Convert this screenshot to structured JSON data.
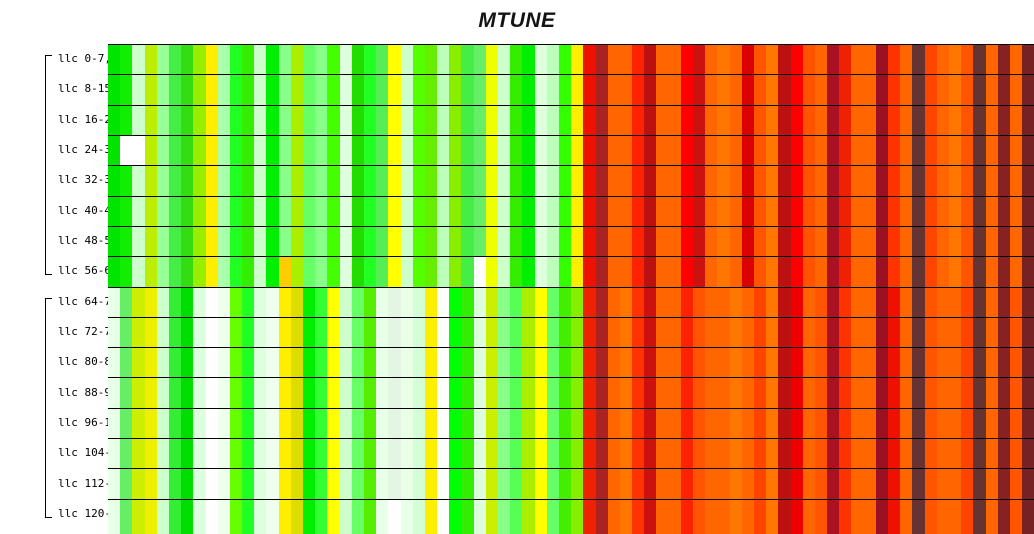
{
  "title": "MTUNE",
  "chart_data": {
    "type": "heatmap",
    "title": "MTUNE",
    "rows": 16,
    "cols": 76,
    "green_cols": 39,
    "legend": "none",
    "grid": "horizontal black separator lines between rows; vertical color stripes per column",
    "value_semantics": "left ~half of columns low/green-yellow values, right ~half high/orange-red values",
    "row_groups": [
      {
        "bracket": true,
        "labels": [
          "llc 0-7,",
          "llc 8-15",
          "llc 16-2",
          "llc 24-3",
          "llc 32-3",
          "llc 40-4",
          "llc 48-5",
          "llc 56-6"
        ]
      },
      {
        "bracket": true,
        "labels": [
          "llc 64-7",
          "llc 72-7",
          "llc 80-8",
          "llc 88-9",
          "llc 96-1",
          "llc 104-",
          "llc 112-",
          "llc 120-"
        ]
      }
    ],
    "column_colors": {
      "group1": [
        "#00e400",
        "#11ee00",
        "#ccffcc",
        "#bbee00",
        "#99ff99",
        "#44ee44",
        "#33dd11",
        "#99ee00",
        "#ffee00",
        "#aaffaa",
        "#22ff22",
        "#33ee00",
        "#ccffcc",
        "#00ee00",
        "#88ff88",
        "#aaee00",
        "#66ff66",
        "#88ff88",
        "#44ff00",
        "#ddffdd",
        "#22dd00",
        "#22ff22",
        "#55ee55",
        "#ffff00",
        "#ccffcc",
        "#55ff00",
        "#66ee00",
        "#bbffbb",
        "#88ee00",
        "#44ee44",
        "#66ee66",
        "#eeff00",
        "#ccffcc",
        "#33ee00",
        "#00ee00",
        "#ddffdd",
        "#bbffbb",
        "#33ff00",
        "#ffee00",
        "#ee1100",
        "#aa2222",
        "#ff6600",
        "#ff6600",
        "#ff2200",
        "#bb1111",
        "#ff6600",
        "#ff6600",
        "#ff0000",
        "#cc1111",
        "#ff6600",
        "#ff7700",
        "#ff6600",
        "#dd0000",
        "#ff5500",
        "#ff7700",
        "#bb1111",
        "#ff0000",
        "#ff5500",
        "#ff6600",
        "#aa1122",
        "#ee2200",
        "#ff6600",
        "#ff6600",
        "#991122",
        "#ff3300",
        "#ff6600",
        "#663333",
        "#ff4500",
        "#ff6600",
        "#ff7700",
        "#ff5500",
        "#663333",
        "#ff6600",
        "#882222",
        "#ff6600",
        "#772222"
      ],
      "group2": [
        "#e8ffe8",
        "#66ee66",
        "#ccee00",
        "#eeee00",
        "#ccffcc",
        "#33ee33",
        "#00dd00",
        "#ddffdd",
        "#ffffff",
        "#eeffee",
        "#66ff00",
        "#22ff22",
        "#ddffdd",
        "#eeffee",
        "#ffee00",
        "#dddd00",
        "#00ee00",
        "#33ff33",
        "#ffff00",
        "#ccffcc",
        "#66ff66",
        "#55ee00",
        "#e8ffe8",
        "#e4f5e4",
        "#e8ffe8",
        "#d4ffd4",
        "#ffee00",
        "#ffffff",
        "#00ff00",
        "#33ee00",
        "#ddffdd",
        "#ccee00",
        "#88ff88",
        "#55ff55",
        "#aaee00",
        "#ffff00",
        "#66ff66",
        "#44ee00",
        "#88ee00",
        "#ee2200",
        "#aa2222",
        "#ff6600",
        "#ff7700",
        "#ff3300",
        "#cc1111",
        "#ff6600",
        "#ff6600",
        "#ff2200",
        "#ff5500",
        "#ff6600",
        "#ff6600",
        "#ff7700",
        "#ff6600",
        "#ff4400",
        "#ff7700",
        "#bb1111",
        "#ee0000",
        "#ff6600",
        "#ff5500",
        "#aa1122",
        "#ff3300",
        "#ff6600",
        "#ff6600",
        "#991122",
        "#ee1100",
        "#ff6600",
        "#663333",
        "#ff5500",
        "#ff6600",
        "#ff6600",
        "#ff4400",
        "#663333",
        "#ff6600",
        "#882222",
        "#ff5500",
        "#772222"
      ]
    },
    "cell_overrides": [
      {
        "row": 3,
        "col": 1,
        "color": "#ffffff"
      },
      {
        "row": 3,
        "col": 2,
        "color": "#ffffff"
      },
      {
        "row": 7,
        "col": 14,
        "color": "#ffcc00"
      },
      {
        "row": 7,
        "col": 30,
        "color": "#ffffff"
      },
      {
        "row": 15,
        "col": 23,
        "color": "#ffffff"
      }
    ],
    "grid_line_color": "#000000",
    "background": "#ffffff"
  }
}
